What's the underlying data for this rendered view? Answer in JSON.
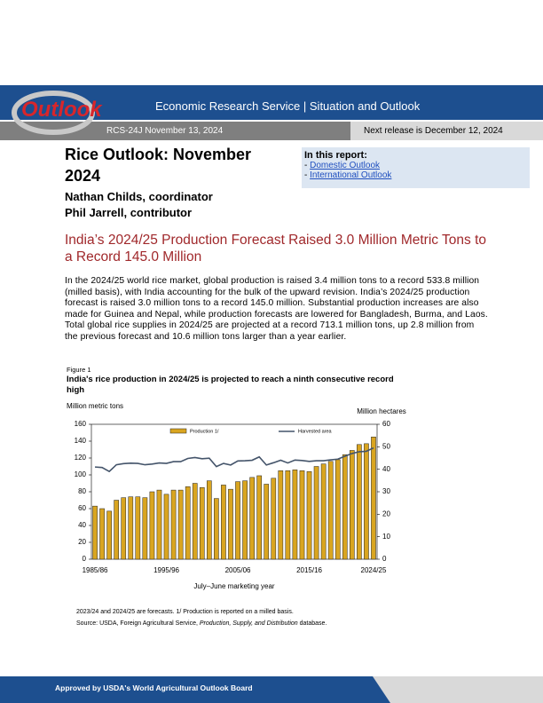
{
  "header": {
    "logo": "Outlook",
    "agency": "Economic Research Service | Situation and Outlook",
    "report_id": "RCS-24J November 13, 2024",
    "next_release": "Next release is December 12, 2024"
  },
  "title": "Rice Outlook: November 2024",
  "authors": [
    "Nathan Childs, coordinator",
    "Phil Jarrell, contributor"
  ],
  "in_this_report": {
    "heading": "In this report:",
    "links": [
      "Domestic Outlook",
      "International Outlook"
    ]
  },
  "headline": "India’s 2024/25 Production Forecast Raised 3.0 Million Metric Tons to a Record 145.0 Million",
  "body": "In the 2024/25 world rice market, global production is raised 3.4 million tons to a record 533.8 million (milled basis), with India accounting for the bulk of the upward revision. India’s 2024/25 production forecast is raised 3.0 million tons to a record 145.0 million. Substantial production increases are also made for Guinea and Nepal, while production forecasts are lowered for Bangladesh, Burma, and Laos. Total global rice supplies in 2024/25 are projected at a record 713.1 million tons, up 2.8 million from the previous forecast and 10.6 million tons larger than a year earlier.",
  "figure": {
    "label": "Figure 1",
    "note": "2023/24 and 2024/25 are forecasts. 1/ Production is reported on a milled basis.",
    "source": [
      "Source: USDA, Foreign Agricultural Service, ",
      "Production, Supply, and Distribution",
      " database."
    ]
  },
  "chart_data": {
    "type": "bar",
    "title": "India's rice production in 2024/25 is projected to reach a ninth consecutive record high",
    "ylabel": "Million metric tons",
    "y2label": "Million hectares",
    "xlabel": "July–June marketing year",
    "categories": [
      "1985/86",
      null,
      null,
      null,
      null,
      null,
      null,
      null,
      null,
      null,
      "1995/96",
      null,
      null,
      null,
      null,
      null,
      null,
      null,
      null,
      null,
      "2005/06",
      null,
      null,
      null,
      null,
      null,
      null,
      null,
      null,
      null,
      "2015/16",
      null,
      null,
      null,
      null,
      null,
      null,
      null,
      null,
      "2024/25"
    ],
    "series": [
      {
        "name": "Production 1/",
        "color": "#d9a520",
        "values": [
          63,
          60,
          57,
          70,
          73,
          74,
          74,
          73,
          80,
          82,
          77,
          82,
          82,
          86,
          90,
          85,
          93,
          72,
          88,
          83,
          92,
          93,
          97,
          99,
          89,
          96,
          105,
          105,
          106,
          105,
          104,
          110,
          113,
          116,
          118,
          124,
          129,
          136,
          137,
          145
        ]
      },
      {
        "name": "Harvested area",
        "color": "#44546a",
        "axis": "y2",
        "values": [
          41,
          40.8,
          39,
          42,
          42.5,
          42.7,
          42.6,
          42,
          42.3,
          42.8,
          42.6,
          43.4,
          43.4,
          44.8,
          45.2,
          44.7,
          44.9,
          41.2,
          42.6,
          41.9,
          43.7,
          43.8,
          44,
          45.5,
          41.9,
          42.9,
          44,
          42.8,
          44.1,
          43.9,
          43.5,
          43.8,
          43.8,
          44.2,
          44.5,
          45.8,
          47,
          47.8,
          48,
          49.5
        ]
      }
    ],
    "ylim": [
      0,
      160
    ],
    "yticks": [
      0,
      20,
      40,
      60,
      80,
      100,
      120,
      140,
      160
    ],
    "y2lim": [
      0,
      60
    ],
    "y2ticks": [
      0,
      10,
      20,
      30,
      40,
      50,
      60
    ],
    "legend": "top",
    "grid": false
  },
  "footer": "Approved by USDA's World Agricultural Outlook Board"
}
